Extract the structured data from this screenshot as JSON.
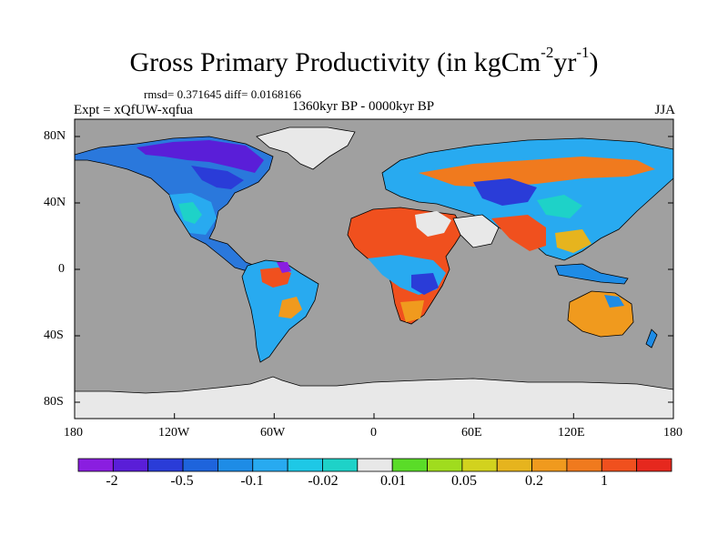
{
  "title": {
    "main": "Gross Primary Productivity (in kgCm",
    "sup1": "-2",
    "mid": "yr",
    "sup2": "-1",
    "end": ")"
  },
  "stats": "rmsd= 0.371645 diff= 0.0168166",
  "left_label": "Expt = xQfUW-xqfua",
  "center_label": "1360kyr BP - 0000kyr BP",
  "right_label": "JJA",
  "y_ticks": [
    "80N",
    "40N",
    "0",
    "40S",
    "80S"
  ],
  "x_ticks": [
    "180",
    "120W",
    "60W",
    "0",
    "60E",
    "120E",
    "180"
  ],
  "colorbar": {
    "colors": [
      "#8a1ee0",
      "#5a1ed8",
      "#2a3cd8",
      "#1e64dc",
      "#1e8ce6",
      "#28aaf0",
      "#1ec8e6",
      "#1ed2c8",
      "#e8e8e8",
      "#5adc28",
      "#a0dc1e",
      "#d2d21e",
      "#e6b41e",
      "#f09a1e",
      "#f07a1e",
      "#f0501e",
      "#e6281e"
    ],
    "labels": [
      "-2",
      "-0.5",
      "-0.1",
      "-0.02",
      "0.01",
      "0.05",
      "0.2",
      "1"
    ]
  },
  "map": {
    "ocean_color": "#a0a0a0",
    "ice_color": "#e8e8e8"
  }
}
